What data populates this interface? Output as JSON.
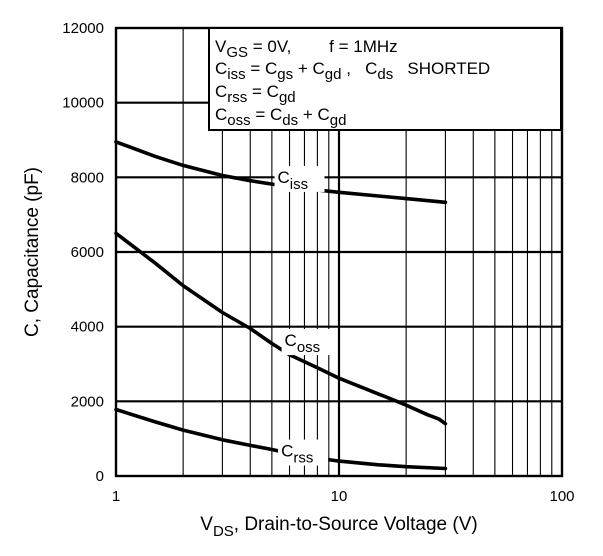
{
  "chart_data": {
    "type": "line",
    "xscale": "log",
    "xlim": [
      1,
      100
    ],
    "ylim": [
      0,
      12000
    ],
    "grid": true,
    "xticks": [
      1,
      10,
      100
    ],
    "xtick_labels": [
      "1",
      "10",
      "100"
    ],
    "yticks": [
      0,
      2000,
      4000,
      6000,
      8000,
      10000,
      12000
    ],
    "ytick_labels": [
      "0",
      "2000",
      "4000",
      "6000",
      "8000",
      "10000",
      "12000"
    ],
    "ylabel": "C, Capacitance (pF)",
    "xlabel": {
      "main": "V",
      "sub": "DS",
      "rest": ", Drain-to-Source Voltage (V)"
    },
    "annotation_lines": [
      [
        {
          "t": "V"
        },
        {
          "t": "GS",
          "sub": true
        },
        {
          "t": " = 0V,        f = 1MHz"
        }
      ],
      [
        {
          "t": "C"
        },
        {
          "t": "iss",
          "sub": true
        },
        {
          "t": " = C"
        },
        {
          "t": "gs",
          "sub": true
        },
        {
          "t": " + C"
        },
        {
          "t": "gd",
          "sub": true
        },
        {
          "t": " ,   C"
        },
        {
          "t": "ds",
          "sub": true
        },
        {
          "t": "   SHORTED"
        }
      ],
      [
        {
          "t": "C"
        },
        {
          "t": "rss",
          "sub": true
        },
        {
          "t": " = C"
        },
        {
          "t": "gd",
          "sub": true
        }
      ],
      [
        {
          "t": "C"
        },
        {
          "t": "oss",
          "sub": true
        },
        {
          "t": " = C"
        },
        {
          "t": "ds",
          "sub": true
        },
        {
          "t": " + C"
        },
        {
          "t": "gd",
          "sub": true
        }
      ]
    ],
    "series": [
      {
        "name": "Ciss",
        "label_main": "C",
        "label_sub": "iss",
        "label_at": {
          "x": 5.3,
          "y": 7850
        },
        "x": [
          1,
          1.5,
          2,
          3,
          4,
          5,
          6,
          8,
          10,
          15,
          20,
          30
        ],
        "y": [
          8950,
          8560,
          8320,
          8050,
          7910,
          7820,
          7750,
          7660,
          7600,
          7500,
          7430,
          7330
        ]
      },
      {
        "name": "Coss",
        "label_main": "C",
        "label_sub": "oss",
        "label_at": {
          "x": 5.7,
          "y": 3480
        },
        "x": [
          1,
          1.5,
          2,
          3,
          4,
          5,
          6,
          8,
          10,
          15,
          20,
          25,
          28,
          30
        ],
        "y": [
          6500,
          5700,
          5100,
          4380,
          3950,
          3550,
          3250,
          2900,
          2620,
          2200,
          1900,
          1640,
          1530,
          1400
        ]
      },
      {
        "name": "Crss",
        "label_main": "C",
        "label_sub": "rss",
        "label_at": {
          "x": 5.5,
          "y": 520
        },
        "x": [
          1,
          1.5,
          2,
          3,
          4,
          5,
          6,
          8,
          10,
          15,
          20,
          30
        ],
        "y": [
          1780,
          1450,
          1230,
          970,
          820,
          710,
          610,
          480,
          400,
          300,
          250,
          200
        ]
      }
    ]
  }
}
